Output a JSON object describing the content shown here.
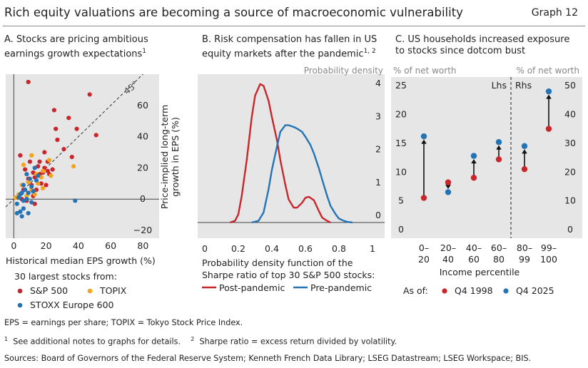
{
  "header": {
    "title": "Rich equity valuations are becoming a source of macroeconomic vulnerability",
    "graph_label": "Graph 12"
  },
  "footnotes": {
    "abbreviations": "EPS = earnings per share; TOPIX = Tokyo Stock Price Index.",
    "note1_mark": "1",
    "note1": "See additional notes to graphs for details.",
    "note2_mark": "2",
    "note2": "Sharpe ratio = excess return divided by volatility.",
    "sources": "Sources: Board of Governors of the Federal Reserve System; Kenneth French Data Library; LSEG Datastream; LSEG Workspace; BIS."
  },
  "colors": {
    "red": "#c8262b",
    "orange": "#f5a31a",
    "blue": "#2474b5",
    "panel_bg": "#e6e6e6"
  },
  "chart_data": [
    {
      "id": "A",
      "type": "scatter",
      "title_line1": "A. Stocks are pricing ambitious",
      "title_line2": "earnings growth expectations",
      "title_sup": "1",
      "xlabel": "Historical median EPS growth (%)",
      "ylabel_line1": "Price-implied long-term",
      "ylabel_line2": "growth in EPS (%)",
      "xlim": [
        -5,
        90
      ],
      "ylim": [
        -25,
        80
      ],
      "x_ticks": [
        0,
        20,
        40,
        60,
        80
      ],
      "y_ticks": [
        -20,
        0,
        20,
        40,
        60
      ],
      "reference_line_label": "45°",
      "legend_title": "30 largest stocks from:",
      "series": [
        {
          "name": "S&P 500",
          "color": "#c8262b",
          "points": [
            [
              9,
              75
            ],
            [
              47,
              67
            ],
            [
              25,
              57
            ],
            [
              34,
              52
            ],
            [
              26,
              45
            ],
            [
              39,
              45
            ],
            [
              51,
              41
            ],
            [
              27,
              38
            ],
            [
              19,
              30
            ],
            [
              31,
              32
            ],
            [
              36,
              27
            ],
            [
              4,
              28
            ],
            [
              10,
              24
            ],
            [
              21,
              24
            ],
            [
              15,
              21
            ],
            [
              19,
              20
            ],
            [
              21,
              18
            ],
            [
              12,
              17
            ],
            [
              16,
              16
            ],
            [
              22,
              16
            ],
            [
              13,
              14
            ],
            [
              9,
              13
            ],
            [
              17,
              10
            ],
            [
              11,
              9
            ],
            [
              20,
              9
            ],
            [
              6,
              6
            ],
            [
              14,
              6
            ],
            [
              9,
              4
            ],
            [
              12,
              2
            ],
            [
              5,
              0
            ],
            [
              8,
              -1
            ],
            [
              13,
              -3
            ],
            [
              18,
              17
            ],
            [
              7,
              19
            ],
            [
              24,
              19
            ],
            [
              16,
              24
            ]
          ]
        },
        {
          "name": "TOPIX",
          "color": "#f5a31a",
          "points": [
            [
              11,
              28
            ],
            [
              22,
              25
            ],
            [
              37,
              21
            ],
            [
              18,
              18
            ],
            [
              14,
              16
            ],
            [
              9,
              11
            ],
            [
              15,
              10
            ],
            [
              5,
              9
            ],
            [
              11,
              6
            ],
            [
              18,
              7
            ],
            [
              3,
              3
            ],
            [
              13,
              3
            ],
            [
              8,
              2
            ],
            [
              1,
              1
            ],
            [
              17,
              14
            ],
            [
              23,
              15
            ],
            [
              6,
              22
            ]
          ]
        },
        {
          "name": "STOXX Europe 600",
          "color": "#2474b5",
          "points": [
            [
              13,
              20
            ],
            [
              8,
              16
            ],
            [
              10,
              13
            ],
            [
              14,
              12
            ],
            [
              6,
              9
            ],
            [
              11,
              8
            ],
            [
              7,
              6
            ],
            [
              5,
              4
            ],
            [
              9,
              4
            ],
            [
              4,
              3
            ],
            [
              3,
              1
            ],
            [
              8,
              0
            ],
            [
              6,
              -1
            ],
            [
              11,
              -2
            ],
            [
              2,
              -3
            ],
            [
              6,
              -6
            ],
            [
              4,
              -8
            ],
            [
              2,
              -9
            ],
            [
              9,
              -9
            ],
            [
              38,
              -1
            ],
            [
              5,
              -11
            ],
            [
              12,
              5
            ],
            [
              15,
              15
            ]
          ]
        }
      ]
    },
    {
      "id": "B",
      "type": "line",
      "title_line1": "B. Risk compensation has fallen in US",
      "title_line2": "equity markets after the pandemic",
      "title_sup": "1, 2",
      "axis_note": "Probability density",
      "xlim": [
        0,
        1.0
      ],
      "ylim": [
        0,
        4.5
      ],
      "x_ticks": [
        0,
        0.2,
        0.4,
        0.6,
        0.8,
        1
      ],
      "y_ticks": [
        0,
        1,
        2,
        3,
        4
      ],
      "caption_line1": "Probability density function of the",
      "caption_line2": "Sharpe ratio of top 30 S&P 500 stocks:",
      "series": [
        {
          "name": "Post-pandemic",
          "color": "#c8262b",
          "x": [
            0.15,
            0.18,
            0.2,
            0.22,
            0.25,
            0.28,
            0.3,
            0.33,
            0.35,
            0.38,
            0.4,
            0.43,
            0.45,
            0.48,
            0.5,
            0.53,
            0.55,
            0.58,
            0.6,
            0.62,
            0.65,
            0.68,
            0.7,
            0.73,
            0.75
          ],
          "y": [
            0.0,
            0.05,
            0.25,
            0.8,
            1.9,
            3.2,
            3.85,
            4.2,
            4.15,
            3.7,
            3.2,
            2.5,
            1.9,
            1.15,
            0.7,
            0.45,
            0.45,
            0.6,
            0.75,
            0.78,
            0.68,
            0.35,
            0.15,
            0.05,
            0.0
          ]
        },
        {
          "name": "Pre-pandemic",
          "color": "#2474b5",
          "x": [
            0.28,
            0.32,
            0.35,
            0.38,
            0.4,
            0.43,
            0.45,
            0.48,
            0.5,
            0.53,
            0.55,
            0.58,
            0.6,
            0.63,
            0.65,
            0.68,
            0.7,
            0.73,
            0.75,
            0.78,
            0.8,
            0.83,
            0.85,
            0.88
          ],
          "y": [
            0.0,
            0.05,
            0.3,
            1.0,
            1.6,
            2.3,
            2.75,
            2.95,
            2.95,
            2.9,
            2.85,
            2.75,
            2.6,
            2.35,
            2.1,
            1.65,
            1.3,
            0.8,
            0.5,
            0.25,
            0.12,
            0.05,
            0.02,
            0.0
          ]
        }
      ]
    },
    {
      "id": "C",
      "type": "dumbbell",
      "title_line1": "C. US households increased exposure",
      "title_line2": "to stocks since dotcom bust",
      "left_axis_note": "% of net worth",
      "right_axis_note": "% of net worth",
      "lhs_label": "Lhs",
      "rhs_label": "Rhs",
      "left_ylim": [
        0,
        27.5
      ],
      "right_ylim": [
        0,
        55
      ],
      "left_ticks": [
        0,
        5,
        10,
        15,
        20,
        25
      ],
      "right_ticks": [
        0,
        10,
        20,
        30,
        40,
        50
      ],
      "xlabel": "Income percentile",
      "asof_label": "As of:",
      "categories": [
        {
          "top": "0–",
          "bottom": "20",
          "axis": "left",
          "q4_1998": 6.5,
          "q4_2025": 17.2
        },
        {
          "top": "20–",
          "bottom": "40",
          "axis": "left",
          "q4_1998": 9.2,
          "q4_2025": 7.5
        },
        {
          "top": "40–",
          "bottom": "60",
          "axis": "left",
          "q4_1998": 10.0,
          "q4_2025": 13.8
        },
        {
          "top": "60–",
          "bottom": "80",
          "axis": "left",
          "q4_1998": 13.2,
          "q4_2025": 16.2
        },
        {
          "top": "80–",
          "bottom": "99",
          "axis": "right",
          "q4_1998": 23.0,
          "q4_2025": 31.0
        },
        {
          "top": "99–",
          "bottom": "100",
          "axis": "right",
          "q4_1998": 37.0,
          "q4_2025": 50.0
        }
      ],
      "series": [
        {
          "name": "Q4 1998",
          "color": "#c8262b"
        },
        {
          "name": "Q4 2025",
          "color": "#2474b5"
        }
      ]
    }
  ]
}
